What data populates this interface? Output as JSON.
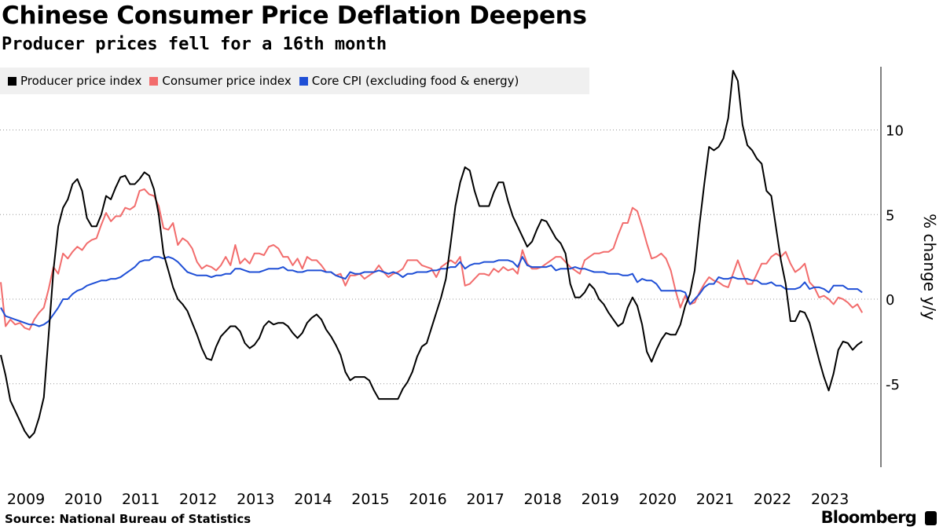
{
  "title": "Chinese Consumer Price Deflation Deepens",
  "subtitle": "Producer prices fell for a 16th month",
  "source": "Source: National Bureau of Statistics",
  "brand": "Bloomberg",
  "chart_data": {
    "type": "line",
    "ylabel": "% change y/y",
    "ylim": [
      -10,
      14
    ],
    "yticks": [
      "10",
      "5",
      "0",
      "-5"
    ],
    "ytick_values": [
      10,
      5,
      0,
      -5
    ],
    "xticks": [
      "2009",
      "2010",
      "2011",
      "2012",
      "2013",
      "2014",
      "2015",
      "2016",
      "2017",
      "2018",
      "2019",
      "2020",
      "2021",
      "2022",
      "2023"
    ],
    "x_start": "2009-01",
    "x_end": "2024-01",
    "frequency": "monthly",
    "grid": true,
    "legend_position": "top-left",
    "series": [
      {
        "name": "Producer price index",
        "color": "#000000",
        "values": [
          -3.3,
          -4.5,
          -6.0,
          -6.6,
          -7.2,
          -7.8,
          -8.2,
          -7.9,
          -7.0,
          -5.8,
          -2.1,
          1.7,
          4.3,
          5.4,
          5.9,
          6.8,
          7.1,
          6.4,
          4.8,
          4.3,
          4.3,
          5.0,
          6.1,
          5.9,
          6.6,
          7.2,
          7.3,
          6.8,
          6.8,
          7.1,
          7.5,
          7.3,
          6.5,
          5.0,
          2.7,
          1.7,
          0.7,
          0.0,
          -0.3,
          -0.7,
          -1.4,
          -2.1,
          -2.9,
          -3.5,
          -3.6,
          -2.8,
          -2.2,
          -1.9,
          -1.6,
          -1.6,
          -1.9,
          -2.6,
          -2.9,
          -2.7,
          -2.3,
          -1.6,
          -1.3,
          -1.5,
          -1.4,
          -1.4,
          -1.6,
          -2.0,
          -2.3,
          -2.0,
          -1.4,
          -1.1,
          -0.9,
          -1.2,
          -1.8,
          -2.2,
          -2.7,
          -3.3,
          -4.3,
          -4.8,
          -4.6,
          -4.6,
          -4.6,
          -4.8,
          -5.4,
          -5.9,
          -5.9,
          -5.9,
          -5.9,
          -5.9,
          -5.3,
          -4.9,
          -4.3,
          -3.4,
          -2.8,
          -2.6,
          -1.7,
          -0.8,
          0.1,
          1.2,
          3.3,
          5.5,
          6.9,
          7.8,
          7.6,
          6.4,
          5.5,
          5.5,
          5.5,
          6.3,
          6.9,
          6.9,
          5.8,
          4.9,
          4.3,
          3.7,
          3.1,
          3.4,
          4.1,
          4.7,
          4.6,
          4.1,
          3.6,
          3.3,
          2.7,
          0.9,
          0.1,
          0.1,
          0.4,
          0.9,
          0.6,
          0.0,
          -0.3,
          -0.8,
          -1.2,
          -1.6,
          -1.4,
          -0.5,
          0.1,
          -0.4,
          -1.5,
          -3.1,
          -3.7,
          -3.0,
          -2.4,
          -2.0,
          -2.1,
          -2.1,
          -1.5,
          -0.4,
          0.3,
          1.7,
          4.4,
          6.8,
          9.0,
          8.8,
          9.0,
          9.5,
          10.7,
          13.5,
          12.9,
          10.3,
          9.1,
          8.8,
          8.3,
          8.0,
          6.4,
          6.1,
          4.2,
          2.3,
          0.9,
          -1.3,
          -1.3,
          -0.7,
          -0.8,
          -1.4,
          -2.5,
          -3.6,
          -4.6,
          -5.4,
          -4.4,
          -3.0,
          -2.5,
          -2.6,
          -3.0,
          -2.7,
          -2.5
        ]
      },
      {
        "name": "Consumer price index",
        "color": "#f26c6c",
        "values": [
          1.0,
          -1.6,
          -1.2,
          -1.5,
          -1.4,
          -1.7,
          -1.8,
          -1.2,
          -0.8,
          -0.5,
          0.6,
          1.9,
          1.5,
          2.7,
          2.4,
          2.8,
          3.1,
          2.9,
          3.3,
          3.5,
          3.6,
          4.4,
          5.1,
          4.6,
          4.9,
          4.9,
          5.4,
          5.3,
          5.5,
          6.4,
          6.5,
          6.2,
          6.1,
          5.5,
          4.2,
          4.1,
          4.5,
          3.2,
          3.6,
          3.4,
          3.0,
          2.2,
          1.8,
          2.0,
          1.9,
          1.7,
          2.0,
          2.5,
          2.0,
          3.2,
          2.1,
          2.4,
          2.1,
          2.7,
          2.7,
          2.6,
          3.1,
          3.2,
          3.0,
          2.5,
          2.5,
          2.0,
          2.4,
          1.8,
          2.5,
          2.3,
          2.3,
          2.0,
          1.6,
          1.6,
          1.4,
          1.5,
          0.8,
          1.4,
          1.4,
          1.5,
          1.2,
          1.4,
          1.6,
          2.0,
          1.6,
          1.3,
          1.5,
          1.6,
          1.8,
          2.3,
          2.3,
          2.3,
          2.0,
          1.9,
          1.8,
          1.3,
          1.9,
          2.1,
          2.3,
          2.1,
          2.5,
          0.8,
          0.9,
          1.2,
          1.5,
          1.5,
          1.4,
          1.8,
          1.6,
          1.9,
          1.7,
          1.8,
          1.5,
          2.9,
          2.1,
          1.8,
          1.8,
          1.9,
          2.1,
          2.3,
          2.5,
          2.5,
          2.2,
          1.9,
          1.7,
          1.5,
          2.3,
          2.5,
          2.7,
          2.7,
          2.8,
          2.8,
          3.0,
          3.8,
          4.5,
          4.5,
          5.4,
          5.2,
          4.3,
          3.3,
          2.4,
          2.5,
          2.7,
          2.4,
          1.7,
          0.5,
          -0.5,
          0.2,
          -0.3,
          -0.2,
          0.4,
          0.9,
          1.3,
          1.1,
          1.0,
          0.8,
          0.7,
          1.5,
          2.3,
          1.5,
          0.9,
          0.9,
          1.5,
          2.1,
          2.1,
          2.5,
          2.7,
          2.5,
          2.8,
          2.1,
          1.6,
          1.8,
          2.1,
          1.0,
          0.7,
          0.1,
          0.2,
          0.0,
          -0.3,
          0.1,
          0.0,
          -0.2,
          -0.5,
          -0.3,
          -0.8
        ]
      },
      {
        "name": "Core CPI (excluding food & energy)",
        "color": "#1f4fd6",
        "values": [
          -0.5,
          -1.0,
          -1.1,
          -1.2,
          -1.3,
          -1.4,
          -1.5,
          -1.5,
          -1.6,
          -1.5,
          -1.3,
          -0.9,
          -0.5,
          0.0,
          0.0,
          0.3,
          0.5,
          0.6,
          0.8,
          0.9,
          1.0,
          1.1,
          1.1,
          1.2,
          1.2,
          1.3,
          1.5,
          1.7,
          1.9,
          2.2,
          2.3,
          2.3,
          2.5,
          2.5,
          2.4,
          2.5,
          2.4,
          2.2,
          1.9,
          1.6,
          1.5,
          1.4,
          1.4,
          1.4,
          1.3,
          1.4,
          1.4,
          1.5,
          1.5,
          1.8,
          1.8,
          1.7,
          1.6,
          1.6,
          1.6,
          1.7,
          1.8,
          1.8,
          1.8,
          1.9,
          1.7,
          1.7,
          1.6,
          1.6,
          1.7,
          1.7,
          1.7,
          1.7,
          1.6,
          1.6,
          1.4,
          1.3,
          1.2,
          1.6,
          1.5,
          1.5,
          1.6,
          1.6,
          1.6,
          1.7,
          1.6,
          1.5,
          1.6,
          1.5,
          1.3,
          1.5,
          1.5,
          1.6,
          1.6,
          1.6,
          1.7,
          1.7,
          1.8,
          1.8,
          1.9,
          1.9,
          2.2,
          1.8,
          2.0,
          2.1,
          2.1,
          2.2,
          2.2,
          2.2,
          2.3,
          2.3,
          2.3,
          2.2,
          1.9,
          2.5,
          2.0,
          1.9,
          1.9,
          1.9,
          1.9,
          2.0,
          1.7,
          1.8,
          1.8,
          1.8,
          1.9,
          1.8,
          1.8,
          1.7,
          1.6,
          1.6,
          1.6,
          1.5,
          1.5,
          1.5,
          1.4,
          1.4,
          1.5,
          1.0,
          1.2,
          1.1,
          1.1,
          0.9,
          0.5,
          0.5,
          0.5,
          0.5,
          0.5,
          0.4,
          -0.3,
          0.0,
          0.3,
          0.7,
          0.9,
          0.9,
          1.3,
          1.2,
          1.2,
          1.3,
          1.2,
          1.2,
          1.2,
          1.1,
          1.1,
          0.9,
          0.9,
          1.0,
          0.8,
          0.8,
          0.6,
          0.6,
          0.6,
          0.7,
          1.0,
          0.6,
          0.7,
          0.7,
          0.6,
          0.4,
          0.8,
          0.8,
          0.8,
          0.6,
          0.6,
          0.6,
          0.4
        ]
      }
    ]
  }
}
